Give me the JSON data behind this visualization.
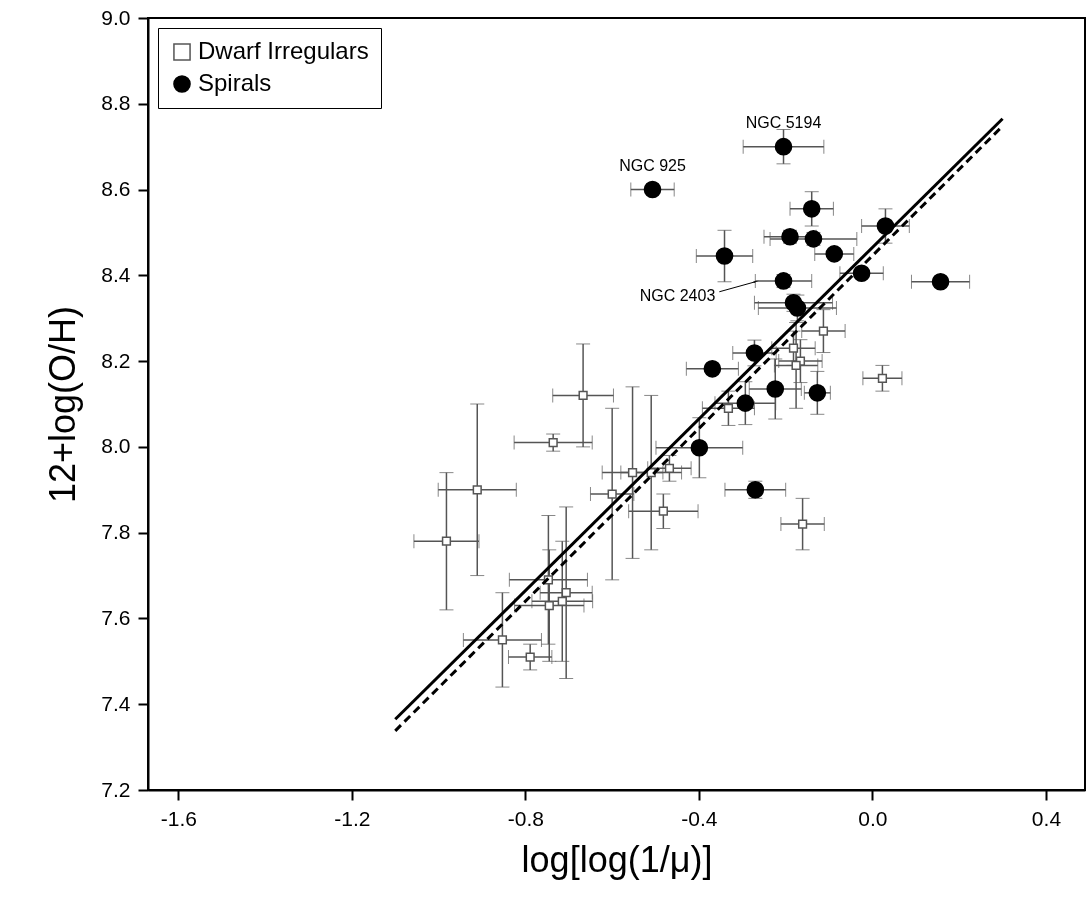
{
  "chart_data": {
    "type": "scatter",
    "xlabel": "log[log(1/μ)]",
    "ylabel": "12+log(O/H)",
    "xlim": [
      -1.67,
      0.49
    ],
    "ylim": [
      7.2,
      9.0
    ],
    "xticks": [
      -1.6,
      -1.2,
      -0.8,
      -0.4,
      {
        "value": 0,
        "label": "0.0"
      },
      0.4
    ],
    "yticks": [
      7.2,
      7.4,
      7.6,
      7.8,
      {
        "value": 8,
        "label": "8.0"
      },
      8.2,
      8.4,
      8.6,
      8.8,
      {
        "value": 9,
        "label": "9.0"
      }
    ],
    "grid": false,
    "legend": "top left",
    "series": [
      {
        "name": "Dwarf Irregulars",
        "type": "scatter",
        "marker": "square",
        "color": "#ffffff",
        "x": [
          -0.667,
          -0.736,
          -0.911,
          -0.982,
          -0.6,
          -0.553,
          -0.51,
          -0.468,
          -0.482,
          -0.747,
          -0.706,
          -0.745,
          -0.715,
          -0.853,
          -0.789,
          -0.113,
          -0.182,
          -0.166,
          -0.176,
          -0.332,
          0.023,
          -0.161
        ],
        "values": [
          8.12,
          8.01,
          7.9,
          7.78,
          7.89,
          7.94,
          7.94,
          7.95,
          7.85,
          7.69,
          7.66,
          7.63,
          7.64,
          7.55,
          7.51,
          8.27,
          8.23,
          8.2,
          8.19,
          8.09,
          8.16,
          7.82
        ],
        "errors": [
          0.12,
          0.02,
          0.2,
          0.16,
          0.2,
          0.2,
          0.18,
          0.03,
          0.04,
          0.15,
          0.2,
          0.13,
          0.14,
          0.11,
          0.03,
          0.05,
          0.04,
          0.05,
          0.1,
          0.04,
          0.03,
          0.06
        ],
        "xerrors": [
          0.07,
          0.09,
          0.09,
          0.075,
          0.05,
          0.07,
          0.07,
          0.05,
          0.08,
          0.09,
          0.06,
          0.08,
          0.07,
          0.09,
          0.05,
          0.05,
          0.05,
          0.05,
          0.05,
          0.06,
          0.045,
          0.05
        ]
      },
      {
        "name": "Spirals",
        "type": "scatter",
        "marker": "circle",
        "color": "#000000",
        "x": [
          -0.205,
          -0.507,
          -0.14,
          -0.19,
          -0.136,
          -0.088,
          0.03,
          -0.341,
          -0.025,
          0.157,
          -0.205,
          -0.182,
          -0.173,
          -0.272,
          -0.369,
          -0.224,
          -0.127,
          -0.293,
          -0.399,
          -0.27
        ],
        "values": [
          8.7,
          8.6,
          8.555,
          8.49,
          8.485,
          8.45,
          8.515,
          8.445,
          8.405,
          8.385,
          8.387,
          8.336,
          8.324,
          8.219,
          8.182,
          8.135,
          8.126,
          8.102,
          7.998,
          7.9
        ],
        "errors": [
          0.04,
          null,
          0.04,
          0.015,
          0.015,
          null,
          0.04,
          0.06,
          null,
          null,
          0.015,
          0.02,
          0.03,
          0.03,
          null,
          0.07,
          0.05,
          0.05,
          0.07,
          0.02
        ],
        "xerrors": [
          0.093,
          0.05,
          0.05,
          0.06,
          0.1,
          0.045,
          0.055,
          0.065,
          0.05,
          0.067,
          0.065,
          0.09,
          0.09,
          0.05,
          0.06,
          0.06,
          0.03,
          0.07,
          0.1,
          0.07
        ]
      },
      {
        "type": "line",
        "color": "#000000",
        "line_style": "solid",
        "x": [
          -1.1,
          0.3
        ],
        "values": [
          7.365,
          8.765
        ]
      },
      {
        "type": "line",
        "color": "#000000",
        "line_style": "dashed",
        "x": [
          -1.1,
          0.3
        ],
        "values": [
          7.338,
          8.748
        ]
      }
    ],
    "annotations": [
      {
        "text": "NGC 5194",
        "x": -0.205,
        "y": 8.7
      },
      {
        "text": "NGC 925",
        "x": -0.507,
        "y": 8.6
      },
      {
        "text": "NGC 2403",
        "x": -0.27,
        "y": 8.385
      }
    ]
  }
}
